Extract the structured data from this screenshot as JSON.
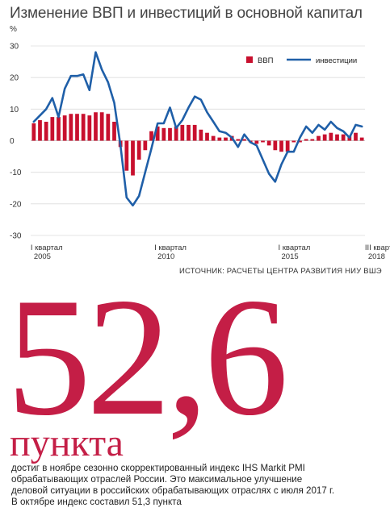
{
  "title": "Изменение ВВП и инвестиций в основной капитал",
  "unit": "%",
  "source": "ИСТОЧНИК: РАСЧЕТЫ ЦЕНТРА РАЗВИТИЯ НИУ ВШЭ",
  "big_number": "52,6",
  "big_unit": "пункта",
  "description": [
    "достиг в ноябре сезонно скорректированный индекс IHS Markit PMI",
    "обрабатывающих отраслей России. Это максимальное  улучшение",
    "деловой ситуации в российских обрабатывающих отраслях с июля 2017 г.",
    "В октябре индекс составил 51,3 пункта"
  ],
  "colors": {
    "gdp": "#c8102e",
    "investment": "#1f5fa8",
    "accent": "#c41e46"
  },
  "chart_data": {
    "type": "bar+line",
    "title": "Изменение ВВП и инвестиций в основной капитал",
    "ylabel": "%",
    "ylim": [
      -30,
      30
    ],
    "yticks": [
      30,
      20,
      10,
      0,
      -10,
      -20,
      -30
    ],
    "grid": true,
    "legend_position": "top-right",
    "x_tick_labels": [
      {
        "index": 0,
        "line1": "I квартал",
        "line2": "2005"
      },
      {
        "index": 20,
        "line1": "I квартал",
        "line2": "2010"
      },
      {
        "index": 40,
        "line1": "I квартал",
        "line2": "2015"
      },
      {
        "index": 54,
        "line1": "III квартал",
        "line2": "2018"
      }
    ],
    "series": [
      {
        "name": "ВВП",
        "type": "bar",
        "values": [
          5.5,
          6.5,
          6.0,
          7.5,
          7.5,
          8.0,
          8.5,
          8.5,
          8.5,
          8.0,
          9.0,
          9.0,
          8.5,
          6.0,
          -2.0,
          -9.5,
          -11.0,
          -6.0,
          -3.0,
          3.0,
          4.5,
          4.0,
          4.0,
          4.5,
          5.0,
          5.0,
          5.0,
          3.5,
          2.5,
          1.5,
          1.0,
          1.0,
          1.5,
          0.5,
          0.5,
          -0.5,
          -1.0,
          -0.5,
          -1.5,
          -3.0,
          -3.5,
          -3.5,
          -0.5,
          -0.5,
          0.5,
          0.5,
          1.5,
          2.0,
          2.5,
          2.0,
          2.0,
          1.5,
          2.5,
          1.0
        ]
      },
      {
        "name": "инвестиции",
        "type": "line",
        "values": [
          6.0,
          8.0,
          10.0,
          13.5,
          7.5,
          16.5,
          20.5,
          20.5,
          21.0,
          16.0,
          28.0,
          22.5,
          18.5,
          12.0,
          -1.5,
          -18.0,
          -20.5,
          -17.5,
          -10.0,
          -2.5,
          5.5,
          5.5,
          10.5,
          4.0,
          6.5,
          10.5,
          14.0,
          13.0,
          9.0,
          6.0,
          3.0,
          2.5,
          1.0,
          -2.0,
          2.0,
          -0.5,
          -1.5,
          -6.0,
          -10.5,
          -13.0,
          -7.5,
          -3.5,
          -3.5,
          1.0,
          4.5,
          2.5,
          5.0,
          3.5,
          6.0,
          4.0,
          3.0,
          1.0,
          5.0,
          4.5
        ]
      }
    ]
  }
}
